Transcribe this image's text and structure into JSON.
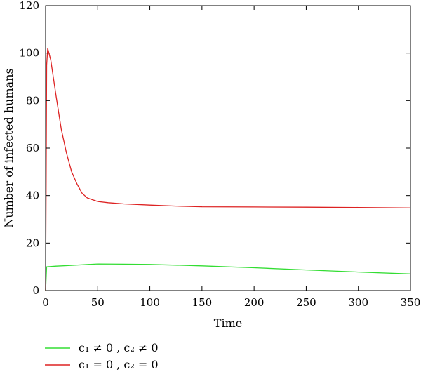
{
  "chart_data": {
    "type": "line",
    "title": "",
    "xlabel": "Time",
    "ylabel": "Number of infected humans",
    "xlim": [
      0,
      350
    ],
    "ylim": [
      0,
      120
    ],
    "xticks": [
      0,
      50,
      100,
      150,
      200,
      250,
      300,
      350
    ],
    "yticks": [
      0,
      20,
      40,
      60,
      80,
      100,
      120
    ],
    "grid": false,
    "legend_position": "bottom-left",
    "series": [
      {
        "name": "c₁ ≠ 0 , c₂ ≠ 0",
        "color": "#33dd33",
        "x": [
          0,
          1,
          10,
          25,
          50,
          75,
          100,
          150,
          200,
          250,
          300,
          350
        ],
        "y": [
          0,
          10,
          10.3,
          10.6,
          11.2,
          11.1,
          11.0,
          10.4,
          9.6,
          8.7,
          7.8,
          7.0
        ]
      },
      {
        "name": "c₁ = 0 , c₂ = 0",
        "color": "#dd2222",
        "x": [
          0,
          0.5,
          1,
          2,
          5,
          10,
          15,
          20,
          25,
          30,
          35,
          40,
          50,
          60,
          75,
          100,
          125,
          150,
          200,
          250,
          300,
          350
        ],
        "y": [
          0,
          40,
          95,
          102,
          97,
          82,
          68,
          58,
          50,
          45,
          41,
          39,
          37.5,
          37,
          36.5,
          36,
          35.6,
          35.3,
          35.2,
          35.1,
          35.0,
          34.8
        ]
      }
    ]
  }
}
